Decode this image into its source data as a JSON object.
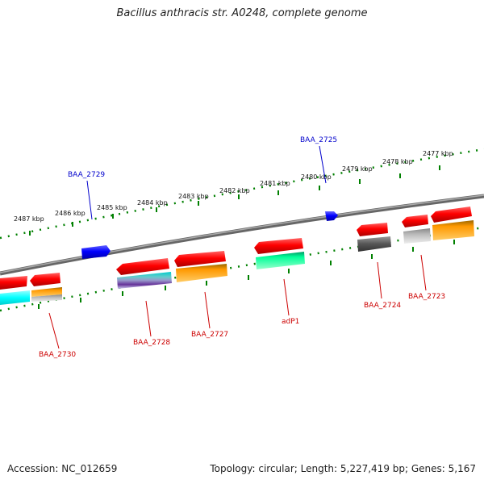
{
  "title": "Bacillus anthracis str. A0248, complete genome",
  "footer": {
    "accession": "Accession: NC_012659",
    "summary": "Topology: circular; Length: 5,227,419 bp; Genes: 5,167"
  },
  "ruler": {
    "labels": [
      "2487 kbp",
      "2486 kbp",
      "2485 kbp",
      "2484 kbp",
      "2483 kbp",
      "2482 kbp",
      "2481 kbp",
      "2480 kbp",
      "2479 kbp",
      "2478 kbp",
      "2477 kbp"
    ]
  },
  "genes": {
    "forward": [
      {
        "name": "BAA_2729",
        "color": "#0000cc"
      },
      {
        "name": "BAA_2725",
        "color": "#0000cc"
      }
    ],
    "reverse": [
      {
        "name": "BAA_2730",
        "color": "#cc0000"
      },
      {
        "name": "BAA_2728",
        "color": "#cc0000"
      },
      {
        "name": "BAA_2727",
        "color": "#cc0000"
      },
      {
        "name": "adP1",
        "color": "#cc0000"
      },
      {
        "name": "BAA_2724",
        "color": "#cc0000"
      },
      {
        "name": "BAA_2723",
        "color": "#cc0000"
      }
    ]
  },
  "colors": {
    "forward_gene": "#0000ff",
    "reverse_gene": "#ff0000",
    "backbone": "#808080",
    "ruler": "#008000",
    "cog_cyan": "#00ffff",
    "cog_orange": "#ff9900",
    "cog_teal": "#00ff99",
    "cog_gray": "#666666",
    "cog_light": "#bbbbbb",
    "cog_purple": "#663399"
  }
}
